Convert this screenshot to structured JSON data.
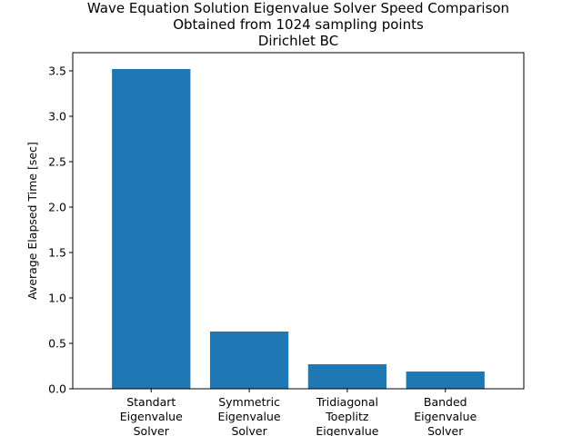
{
  "chart_data": {
    "type": "bar",
    "title_lines": [
      "Wave Equation Solution Eigenvalue Solver Speed Comparison",
      "Obtained from 1024 sampling points",
      "Dirichlet BC"
    ],
    "xlabel": "",
    "ylabel": "Average Elapsed Time [sec]",
    "categories": [
      [
        "Standart",
        "Eigenvalue",
        "Solver"
      ],
      [
        "Symmetric",
        "Eigenvalue",
        "Solver"
      ],
      [
        "Tridiagonal",
        "Toeplitz",
        "Eigenvalue"
      ],
      [
        "Banded",
        "Eigenvalue",
        "Solver"
      ]
    ],
    "values": [
      3.52,
      0.63,
      0.27,
      0.19
    ],
    "ylim": [
      0,
      3.7
    ],
    "yticks": [
      0.0,
      0.5,
      1.0,
      1.5,
      2.0,
      2.5,
      3.0,
      3.5
    ],
    "ytick_labels": [
      "0.0",
      "0.5",
      "1.0",
      "1.5",
      "2.0",
      "2.5",
      "3.0",
      "3.5"
    ],
    "bar_color": "#1f77b4",
    "grid": false,
    "legend": "none"
  }
}
